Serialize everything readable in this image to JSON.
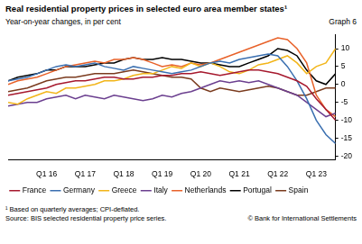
{
  "chart_data": {
    "type": "line",
    "title": "Real residential property prices in selected euro area member states¹",
    "subtitle": "Year-on-year changes, in per cent",
    "graph_label": "Graph 6",
    "footnote": "¹ Based on quarterly averages; CPI-deflated.",
    "source": "Source: BIS selected residential property price series.",
    "credit": "© Bank for International Settlements",
    "categories": [
      null,
      null,
      null,
      null,
      "Q1 16",
      null,
      null,
      null,
      "Q1 17",
      null,
      null,
      null,
      "Q1 18",
      null,
      null,
      null,
      "Q1 19",
      null,
      null,
      null,
      "Q1 20",
      null,
      null,
      null,
      "Q1 21",
      null,
      null,
      null,
      "Q1 22",
      null,
      null,
      null,
      "Q1 23",
      null,
      null
    ],
    "series": [
      {
        "name": "France",
        "color": "#a6192e",
        "values": [
          -3,
          -2.5,
          -2,
          -1.5,
          -1,
          0,
          0.5,
          1,
          1,
          1.5,
          2,
          2,
          1.5,
          1.5,
          2,
          2,
          2.5,
          2.5,
          3,
          3,
          3.5,
          3,
          2.5,
          3,
          3.5,
          4,
          4,
          3.5,
          3,
          2,
          1,
          -0.5,
          -4,
          -7,
          -10
        ]
      },
      {
        "name": "Germany",
        "color": "#3a6fb0",
        "values": [
          1,
          1.5,
          2,
          3,
          4,
          5,
          5.5,
          5,
          5.5,
          6,
          5,
          4.5,
          4,
          5,
          4.5,
          4,
          3.5,
          3,
          3.5,
          4,
          5,
          6,
          6.5,
          6,
          7,
          7.5,
          8,
          8.5,
          8,
          5,
          1,
          -4,
          -10,
          -14,
          -16.5
        ]
      },
      {
        "name": "Greece",
        "color": "#f2b519",
        "values": [
          -5,
          -5.5,
          -4,
          -3,
          -2,
          -2.5,
          -1,
          -1,
          -0.5,
          0,
          1,
          1,
          1.5,
          2.5,
          3,
          3,
          4,
          5,
          4.5,
          6,
          5,
          6,
          5,
          3.5,
          3,
          4,
          5.5,
          6,
          7,
          8,
          6,
          3,
          5,
          6,
          10
        ]
      },
      {
        "name": "Italy",
        "color": "#6b3f8f",
        "values": [
          -6,
          -5.5,
          -5,
          -5,
          -4,
          -3.5,
          -3,
          -4,
          -3,
          -3.5,
          -4,
          -3,
          -3.5,
          -4,
          -4.5,
          -4,
          -3,
          -3.5,
          -2.5,
          -2,
          -1,
          0,
          1,
          0.5,
          1,
          0.5,
          1,
          0,
          -1,
          -2,
          -3,
          -5,
          -7,
          -9,
          -8
        ]
      },
      {
        "name": "Netherlands",
        "color": "#e8622a",
        "values": [
          0,
          1,
          1.5,
          2,
          3,
          4,
          5,
          5.5,
          6,
          6.5,
          6,
          7,
          7,
          7.5,
          7,
          6,
          5,
          5.5,
          5,
          6,
          5.5,
          6,
          7,
          8,
          9,
          10,
          11,
          12,
          13,
          12.5,
          10,
          6,
          -3,
          -7,
          -9
        ]
      },
      {
        "name": "Portugal",
        "color": "#000000",
        "values": [
          1,
          2,
          2.5,
          3,
          4,
          4,
          5,
          5,
          5,
          5.5,
          6,
          6,
          7,
          7.5,
          7,
          7,
          7.5,
          7,
          7,
          6.5,
          6,
          6,
          5.5,
          5,
          5,
          6,
          7,
          8,
          10,
          9.5,
          8,
          4,
          1,
          0,
          3
        ]
      },
      {
        "name": "Spain",
        "color": "#7a3b1e",
        "values": [
          -2,
          -1.5,
          -1,
          0,
          1,
          1.5,
          2,
          2,
          2.5,
          3,
          3,
          3,
          3.5,
          4,
          3.5,
          3,
          2.5,
          2,
          2,
          1.5,
          -1,
          -2,
          -1,
          -1.5,
          -2,
          -1.5,
          -1,
          -0.5,
          -1,
          -2,
          -3,
          -3,
          -2,
          -1,
          -1
        ]
      }
    ],
    "ylim": [
      -21,
      14
    ],
    "yticks": [
      -20,
      -15,
      -10,
      -5,
      0,
      5,
      10
    ],
    "grid": false,
    "legend": "bottom"
  }
}
